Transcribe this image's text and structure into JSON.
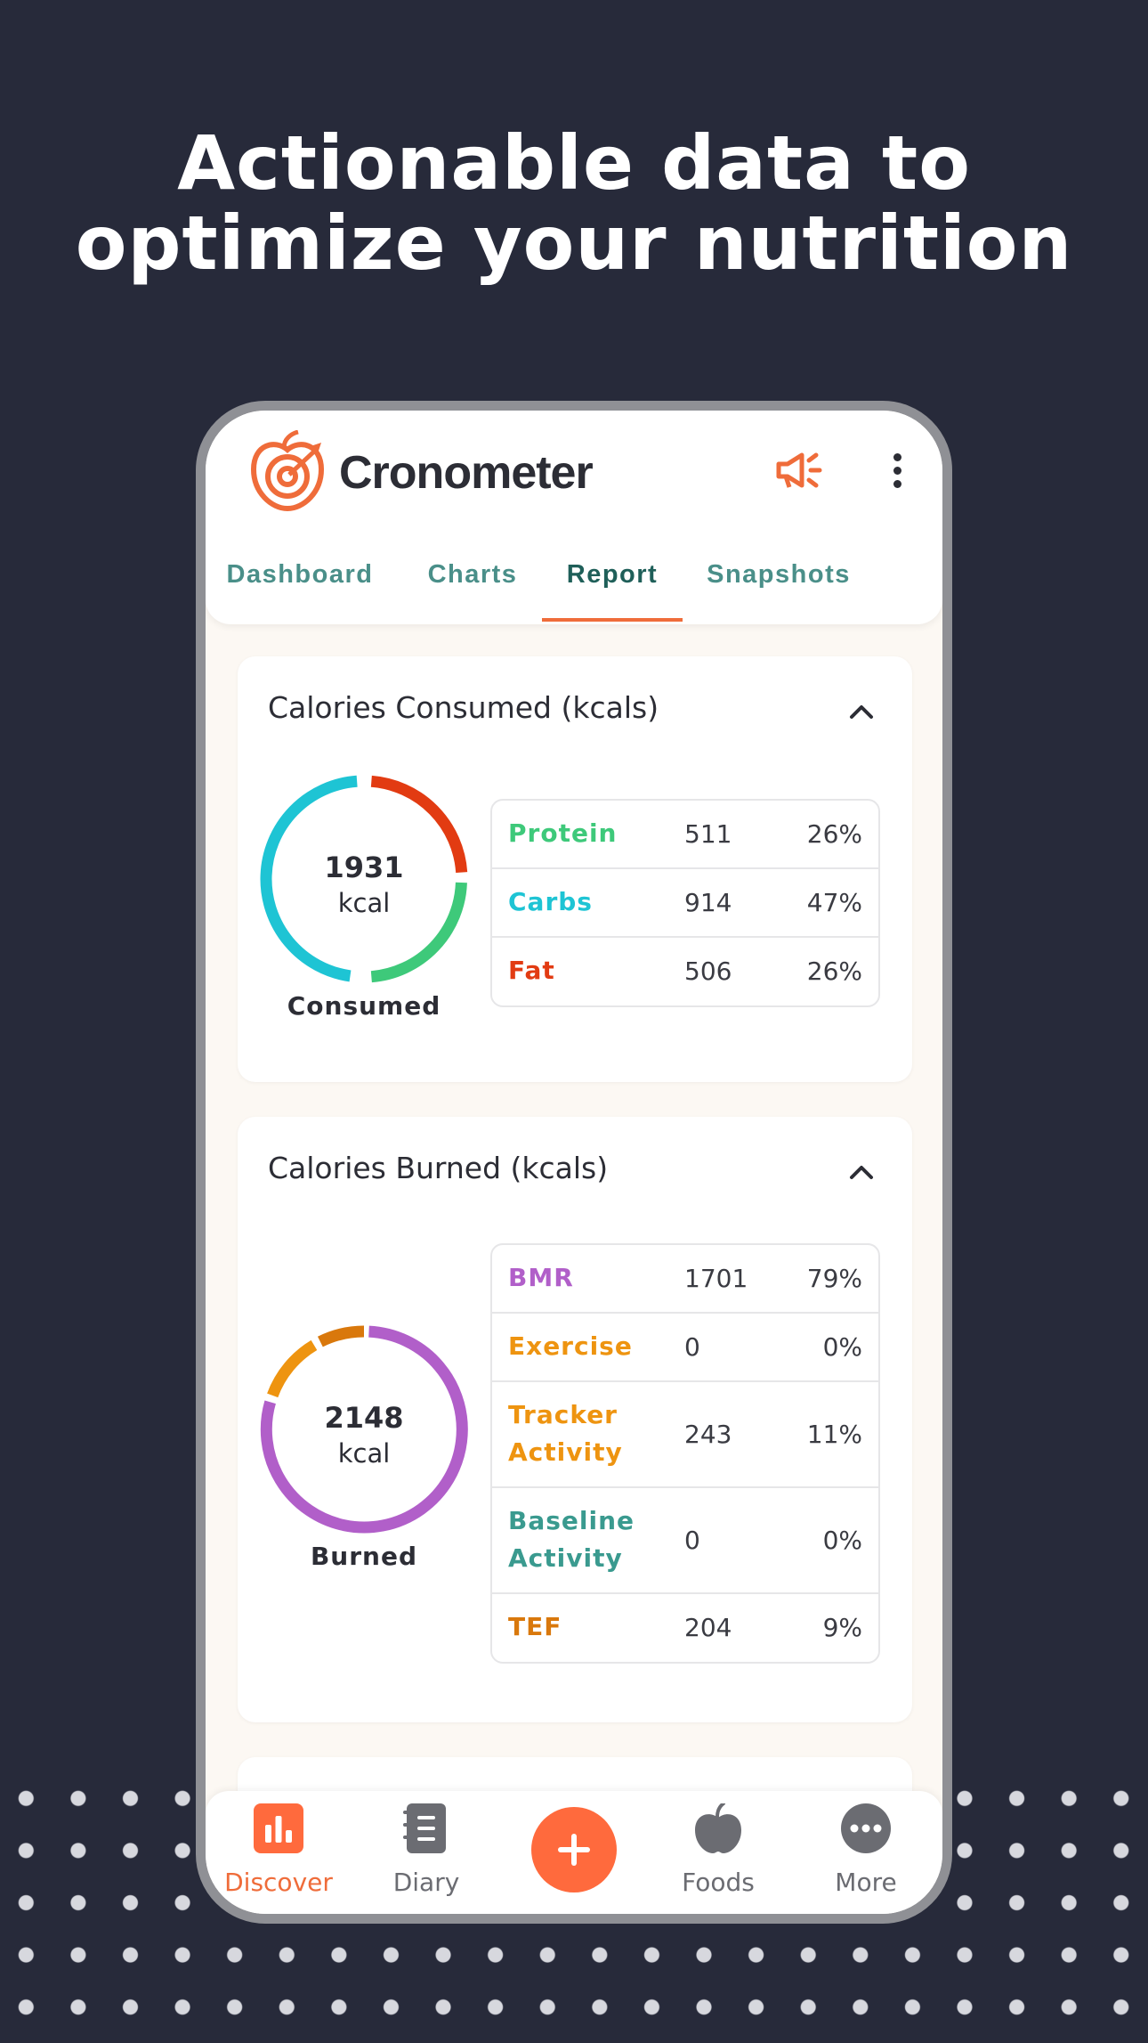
{
  "headline": {
    "line1": "Actionable data to",
    "line2": "optimize your nutrition"
  },
  "app": {
    "name": "Cronometer",
    "brand_color": "#ef6c3a",
    "tabs": [
      {
        "label": "Dashboard",
        "active": false
      },
      {
        "label": "Charts",
        "active": false
      },
      {
        "label": "Report",
        "active": true
      },
      {
        "label": "Snapshots",
        "active": false
      }
    ]
  },
  "consumed_card": {
    "title": "Calories Consumed (kcals)",
    "total": "1931",
    "unit": "kcal",
    "caption": "Consumed",
    "rows": [
      {
        "name": "Protein",
        "value": "511",
        "pct": "26%",
        "color": "#3ec97a"
      },
      {
        "name": "Carbs",
        "value": "914",
        "pct": "47%",
        "color": "#1ec4d4"
      },
      {
        "name": "Fat",
        "value": "506",
        "pct": "26%",
        "color": "#e23b12"
      }
    ]
  },
  "burned_card": {
    "title": "Calories Burned (kcals)",
    "total": "2148",
    "unit": "kcal",
    "caption": "Burned",
    "rows": [
      {
        "name1": "BMR",
        "name2": "",
        "value": "1701",
        "pct": "79%",
        "color": "#b15fc9"
      },
      {
        "name1": "Exercise",
        "name2": "",
        "value": "0",
        "pct": "0%",
        "color": "#ee9410"
      },
      {
        "name1": "Tracker",
        "name2": "Activity",
        "value": "243",
        "pct": "11%",
        "color": "#ee9410"
      },
      {
        "name1": "Baseline",
        "name2": "Activity",
        "value": "0",
        "pct": "0%",
        "color": "#3a9a8f"
      },
      {
        "name1": "TEF",
        "name2": "",
        "value": "204",
        "pct": "9%",
        "color": "#d9780c"
      }
    ]
  },
  "nav": {
    "items": [
      {
        "label": "Discover",
        "icon": "bar-chart-icon",
        "active": true
      },
      {
        "label": "Diary",
        "icon": "notebook-icon",
        "active": false
      },
      {
        "label": "",
        "icon": "plus-icon",
        "active": false
      },
      {
        "label": "Foods",
        "icon": "apple-icon",
        "active": false
      },
      {
        "label": "More",
        "icon": "more-icon",
        "active": false
      }
    ]
  }
}
